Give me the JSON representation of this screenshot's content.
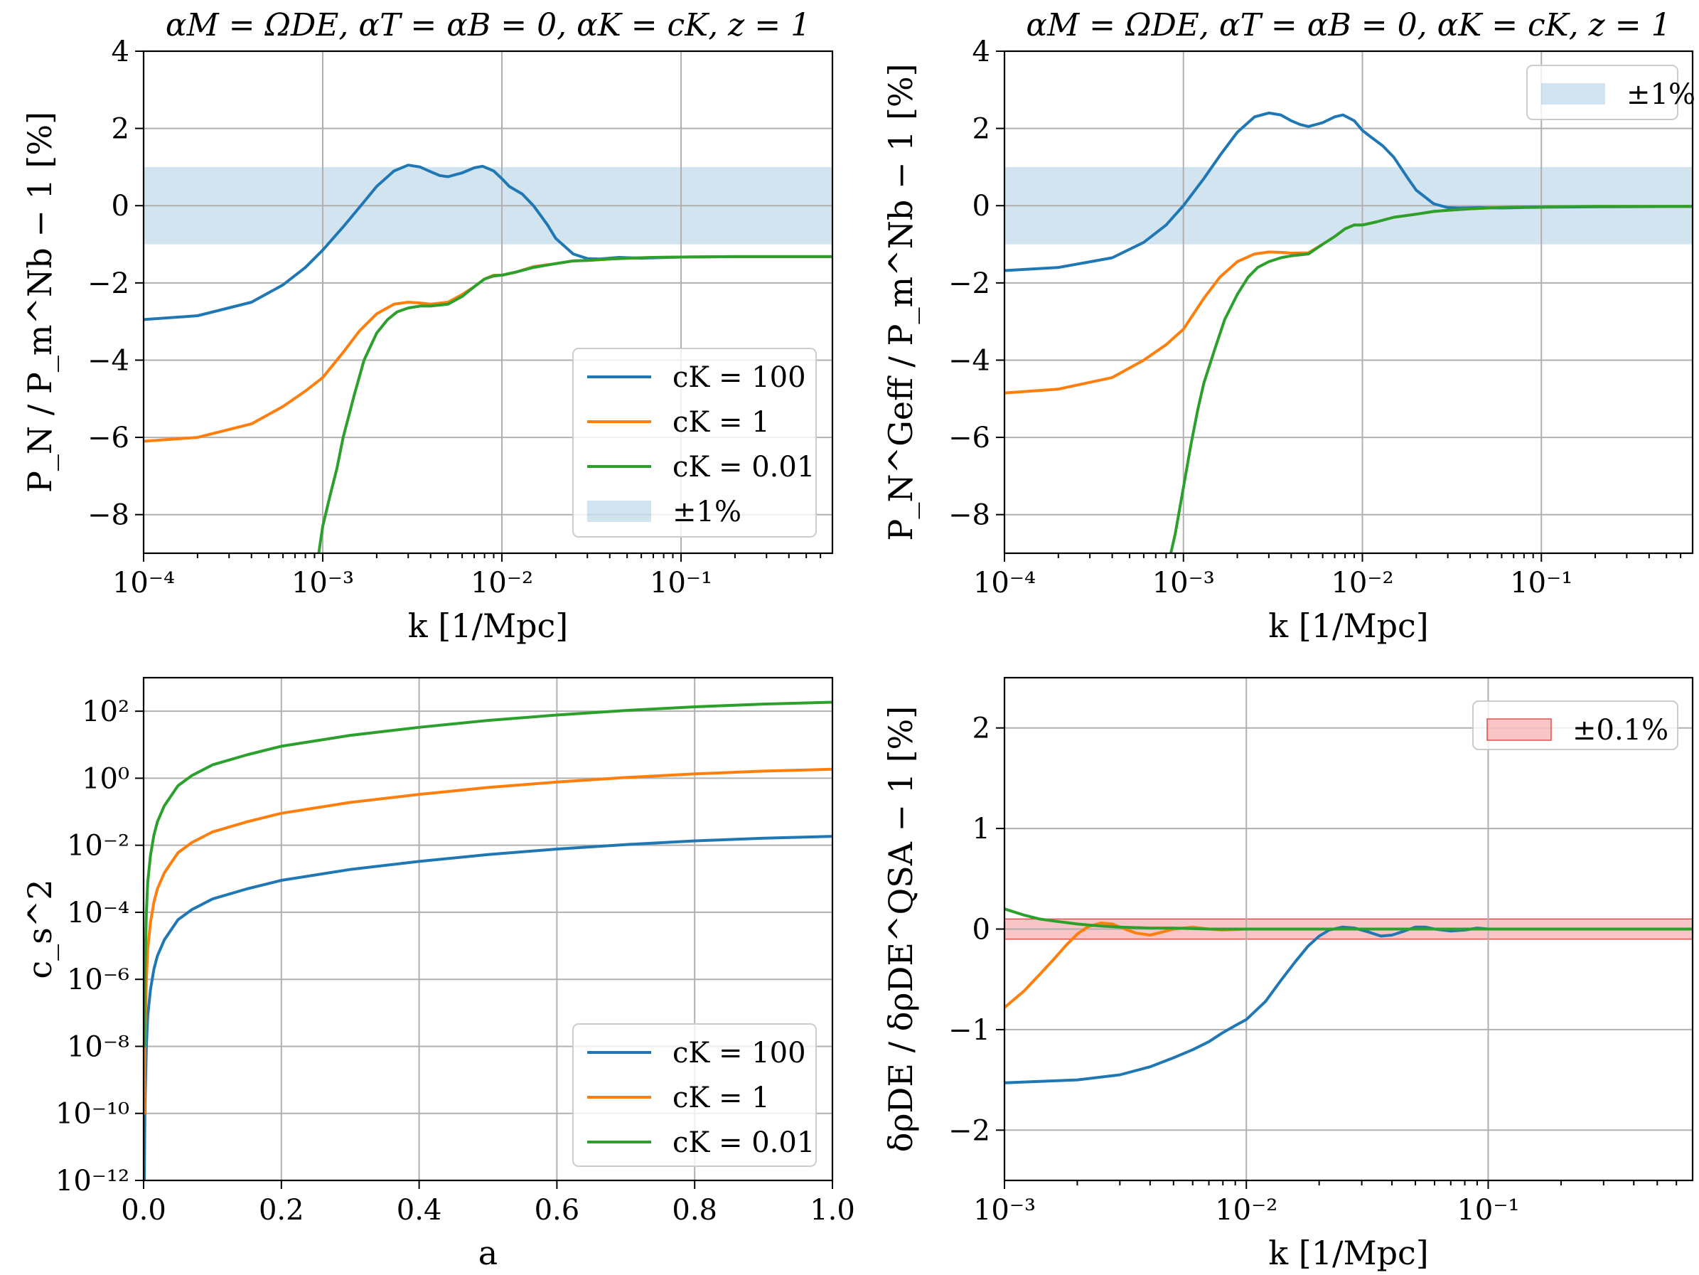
{
  "colors": {
    "c100": "#1f77b4",
    "c1": "#ff7f0e",
    "c001": "#2ca02c",
    "band_blue": "#1f77b4",
    "band_red": "#f08080"
  },
  "chart_data": [
    {
      "id": "top_left",
      "type": "line",
      "title": "αM = ΩDE, αT = αB = 0, αK = cK, z = 1",
      "xlabel": "k [1/Mpc]",
      "ylabel": "P_N / P_m^Nb − 1 [%]",
      "xscale": "log",
      "xlim": [
        0.0001,
        0.7
      ],
      "ylim": [
        -9,
        4
      ],
      "xticks": [
        0.0001,
        0.001,
        0.01,
        0.1
      ],
      "xtick_labels": [
        "10⁻⁴",
        "10⁻³",
        "10⁻²",
        "10⁻¹"
      ],
      "yticks": [
        -8,
        -6,
        -4,
        -2,
        0,
        2,
        4
      ],
      "ytick_labels": [
        "−8",
        "−6",
        "−4",
        "−2",
        "0",
        "2",
        "4"
      ],
      "band": {
        "low": -1,
        "high": 1,
        "label": "±1%",
        "color": "band_blue"
      },
      "legend": {
        "position": "lower-right",
        "entries": [
          "cK = 100",
          "cK = 1",
          "cK = 0.01",
          "±1%"
        ]
      },
      "series": [
        {
          "name": "cK = 100",
          "color": "c100",
          "x": [
            0.0001,
            0.0002,
            0.0004,
            0.0006,
            0.0008,
            0.001,
            0.0013,
            0.0016,
            0.002,
            0.0025,
            0.003,
            0.0035,
            0.004,
            0.0045,
            0.005,
            0.006,
            0.007,
            0.0078,
            0.009,
            0.01,
            0.011,
            0.013,
            0.015,
            0.018,
            0.02,
            0.025,
            0.03,
            0.035,
            0.045,
            0.06,
            0.1,
            0.2,
            0.7
          ],
          "y": [
            -2.95,
            -2.85,
            -2.5,
            -2.05,
            -1.6,
            -1.15,
            -0.55,
            -0.05,
            0.5,
            0.9,
            1.05,
            1.0,
            0.88,
            0.78,
            0.75,
            0.85,
            0.98,
            1.02,
            0.9,
            0.7,
            0.5,
            0.3,
            0.0,
            -0.5,
            -0.85,
            -1.25,
            -1.37,
            -1.38,
            -1.34,
            -1.36,
            -1.33,
            -1.32,
            -1.32
          ]
        },
        {
          "name": "cK = 1",
          "color": "c1",
          "x": [
            0.0001,
            0.0002,
            0.0004,
            0.0006,
            0.0008,
            0.001,
            0.0013,
            0.0016,
            0.002,
            0.0025,
            0.003,
            0.0035,
            0.004,
            0.005,
            0.006,
            0.007,
            0.008,
            0.009,
            0.01,
            0.012,
            0.015,
            0.02,
            0.025,
            0.03,
            0.04,
            0.05,
            0.07,
            0.1,
            0.2,
            0.7
          ],
          "y": [
            -6.1,
            -6.0,
            -5.65,
            -5.2,
            -4.8,
            -4.45,
            -3.8,
            -3.25,
            -2.8,
            -2.55,
            -2.5,
            -2.52,
            -2.55,
            -2.5,
            -2.3,
            -2.1,
            -1.9,
            -1.8,
            -1.8,
            -1.72,
            -1.58,
            -1.5,
            -1.43,
            -1.42,
            -1.38,
            -1.36,
            -1.34,
            -1.33,
            -1.32,
            -1.32
          ]
        },
        {
          "name": "cK = 0.01",
          "color": "c001",
          "x": [
            0.00095,
            0.001,
            0.0011,
            0.0012,
            0.0013,
            0.0015,
            0.0017,
            0.002,
            0.0023,
            0.0026,
            0.003,
            0.0035,
            0.004,
            0.005,
            0.006,
            0.007,
            0.008,
            0.009,
            0.01,
            0.012,
            0.015,
            0.02,
            0.025,
            0.03,
            0.04,
            0.05,
            0.07,
            0.1,
            0.2,
            0.7
          ],
          "y": [
            -9.0,
            -8.3,
            -7.5,
            -6.8,
            -6.0,
            -4.9,
            -4.0,
            -3.3,
            -2.95,
            -2.75,
            -2.65,
            -2.6,
            -2.6,
            -2.55,
            -2.35,
            -2.1,
            -1.9,
            -1.82,
            -1.8,
            -1.72,
            -1.6,
            -1.5,
            -1.43,
            -1.42,
            -1.38,
            -1.36,
            -1.34,
            -1.33,
            -1.32,
            -1.32
          ]
        }
      ]
    },
    {
      "id": "top_right",
      "type": "line",
      "title": "αM = ΩDE, αT = αB = 0, αK = cK, z = 1",
      "xlabel": "k [1/Mpc]",
      "ylabel": "P_N^Geff / P_m^Nb − 1 [%]",
      "xscale": "log",
      "xlim": [
        0.0001,
        0.7
      ],
      "ylim": [
        -9,
        4
      ],
      "xticks": [
        0.0001,
        0.001,
        0.01,
        0.1
      ],
      "xtick_labels": [
        "10⁻⁴",
        "10⁻³",
        "10⁻²",
        "10⁻¹"
      ],
      "yticks": [
        -8,
        -6,
        -4,
        -2,
        0,
        2,
        4
      ],
      "ytick_labels": [
        "−8",
        "−6",
        "−4",
        "−2",
        "0",
        "2",
        "4"
      ],
      "band": {
        "low": -1,
        "high": 1,
        "label": "±1%",
        "color": "band_blue"
      },
      "legend": {
        "position": "upper-right",
        "entries": [
          "±1%"
        ]
      },
      "series": [
        {
          "name": "cK = 100",
          "color": "c100",
          "x": [
            0.0001,
            0.0002,
            0.0004,
            0.0006,
            0.0008,
            0.001,
            0.0013,
            0.0016,
            0.002,
            0.0025,
            0.003,
            0.0035,
            0.004,
            0.0045,
            0.005,
            0.006,
            0.007,
            0.0078,
            0.009,
            0.01,
            0.011,
            0.013,
            0.015,
            0.018,
            0.02,
            0.025,
            0.03,
            0.035,
            0.045,
            0.06,
            0.1,
            0.2,
            0.7
          ],
          "y": [
            -1.68,
            -1.6,
            -1.35,
            -0.95,
            -0.5,
            0.0,
            0.7,
            1.3,
            1.9,
            2.3,
            2.4,
            2.35,
            2.2,
            2.1,
            2.05,
            2.15,
            2.3,
            2.35,
            2.2,
            1.95,
            1.8,
            1.55,
            1.25,
            0.7,
            0.4,
            0.05,
            -0.05,
            -0.06,
            -0.05,
            -0.06,
            -0.04,
            -0.03,
            -0.02
          ]
        },
        {
          "name": "cK = 1",
          "color": "c1",
          "x": [
            0.0001,
            0.0002,
            0.0004,
            0.0006,
            0.0008,
            0.001,
            0.0013,
            0.0016,
            0.002,
            0.0025,
            0.003,
            0.0035,
            0.004,
            0.005,
            0.006,
            0.007,
            0.008,
            0.009,
            0.01,
            0.012,
            0.015,
            0.02,
            0.025,
            0.03,
            0.04,
            0.05,
            0.07,
            0.1,
            0.2,
            0.7
          ],
          "y": [
            -4.85,
            -4.75,
            -4.45,
            -4.0,
            -3.6,
            -3.2,
            -2.4,
            -1.85,
            -1.45,
            -1.25,
            -1.2,
            -1.21,
            -1.23,
            -1.22,
            -1.0,
            -0.8,
            -0.6,
            -0.5,
            -0.5,
            -0.42,
            -0.3,
            -0.22,
            -0.15,
            -0.12,
            -0.08,
            -0.06,
            -0.04,
            -0.03,
            -0.02,
            -0.02
          ]
        },
        {
          "name": "cK = 0.01",
          "color": "c001",
          "x": [
            0.00085,
            0.0009,
            0.001,
            0.0011,
            0.0012,
            0.0013,
            0.0015,
            0.0017,
            0.002,
            0.0023,
            0.0026,
            0.003,
            0.0035,
            0.004,
            0.005,
            0.006,
            0.007,
            0.008,
            0.009,
            0.01,
            0.012,
            0.015,
            0.02,
            0.025,
            0.03,
            0.04,
            0.05,
            0.07,
            0.1,
            0.2,
            0.7
          ],
          "y": [
            -9.0,
            -8.5,
            -7.3,
            -6.2,
            -5.3,
            -4.6,
            -3.7,
            -2.95,
            -2.3,
            -1.85,
            -1.6,
            -1.45,
            -1.35,
            -1.3,
            -1.25,
            -1.0,
            -0.8,
            -0.6,
            -0.5,
            -0.5,
            -0.42,
            -0.3,
            -0.22,
            -0.15,
            -0.12,
            -0.08,
            -0.06,
            -0.04,
            -0.03,
            -0.02,
            -0.02
          ]
        }
      ]
    },
    {
      "id": "bottom_left",
      "type": "line",
      "title": "",
      "xlabel": "a",
      "ylabel": "c_s^2",
      "xscale": "linear",
      "yscale": "log",
      "xlim": [
        0.0,
        1.0
      ],
      "ylim": [
        1e-12,
        1000
      ],
      "xticks": [
        0.0,
        0.2,
        0.4,
        0.6,
        0.8,
        1.0
      ],
      "xtick_labels": [
        "0.0",
        "0.2",
        "0.4",
        "0.6",
        "0.8",
        "1.0"
      ],
      "yticks": [
        1e-12,
        1e-10,
        1e-08,
        1e-06,
        0.0001,
        0.01,
        1,
        100
      ],
      "ytick_labels": [
        "10⁻¹²",
        "10⁻¹⁰",
        "10⁻⁸",
        "10⁻⁶",
        "10⁻⁴",
        "10⁻²",
        "10⁰",
        "10²"
      ],
      "legend": {
        "position": "lower-right",
        "entries": [
          "cK = 100",
          "cK = 1",
          "cK = 0.01"
        ]
      },
      "series": [
        {
          "name": "cK = 100",
          "color": "c100",
          "x": [
            0.001,
            0.002,
            0.004,
            0.006,
            0.01,
            0.015,
            0.02,
            0.03,
            0.05,
            0.07,
            0.1,
            0.15,
            0.2,
            0.3,
            0.4,
            0.5,
            0.6,
            0.7,
            0.8,
            0.9,
            1.0
          ],
          "y": [
            1e-12,
            1.5e-10,
            1e-08,
            8e-08,
            5e-07,
            2e-06,
            5e-06,
            1.5e-05,
            6e-05,
            0.00012,
            0.00025,
            0.0005,
            0.0009,
            0.0019,
            0.0033,
            0.0053,
            0.0077,
            0.0105,
            0.0135,
            0.0163,
            0.0185
          ]
        },
        {
          "name": "cK = 1",
          "color": "c1",
          "x": [
            0.001,
            0.002,
            0.004,
            0.006,
            0.01,
            0.015,
            0.02,
            0.03,
            0.05,
            0.07,
            0.1,
            0.15,
            0.2,
            0.3,
            0.4,
            0.5,
            0.6,
            0.7,
            0.8,
            0.9,
            1.0
          ],
          "y": [
            1e-10,
            1.5e-08,
            1e-06,
            8e-06,
            5e-05,
            0.0002,
            0.0005,
            0.0015,
            0.006,
            0.012,
            0.025,
            0.05,
            0.09,
            0.19,
            0.33,
            0.53,
            0.77,
            1.05,
            1.35,
            1.63,
            1.85
          ]
        },
        {
          "name": "cK = 0.01",
          "color": "c001",
          "x": [
            0.001,
            0.002,
            0.004,
            0.006,
            0.01,
            0.015,
            0.02,
            0.03,
            0.05,
            0.07,
            0.1,
            0.15,
            0.2,
            0.3,
            0.4,
            0.5,
            0.6,
            0.7,
            0.8,
            0.9,
            1.0
          ],
          "y": [
            1e-08,
            1.5e-06,
            0.0001,
            0.0008,
            0.005,
            0.02,
            0.05,
            0.15,
            0.6,
            1.2,
            2.5,
            5,
            9,
            19,
            33,
            53,
            77,
            105,
            135,
            163,
            185
          ]
        }
      ]
    },
    {
      "id": "bottom_right",
      "type": "line",
      "title": "",
      "xlabel": "k [1/Mpc]",
      "ylabel": "δρDE / δρDE^QSA − 1 [%]",
      "xscale": "log",
      "xlim": [
        0.001,
        0.7
      ],
      "ylim": [
        -2.5,
        2.5
      ],
      "xticks": [
        0.001,
        0.01,
        0.1
      ],
      "xtick_labels": [
        "10⁻³",
        "10⁻²",
        "10⁻¹"
      ],
      "yticks": [
        -2,
        -1,
        0,
        1,
        2
      ],
      "ytick_labels": [
        "−2",
        "−1",
        "0",
        "1",
        "2"
      ],
      "band": {
        "low": -0.1,
        "high": 0.1,
        "label": "±0.1%",
        "color": "band_red"
      },
      "legend": {
        "position": "upper-right",
        "entries": [
          "±0.1%"
        ]
      },
      "series": [
        {
          "name": "cK = 100",
          "color": "c100",
          "x": [
            0.001,
            0.002,
            0.003,
            0.004,
            0.005,
            0.006,
            0.007,
            0.008,
            0.009,
            0.01,
            0.012,
            0.014,
            0.016,
            0.018,
            0.02,
            0.022,
            0.025,
            0.028,
            0.032,
            0.036,
            0.04,
            0.045,
            0.05,
            0.055,
            0.06,
            0.07,
            0.08,
            0.09,
            0.1,
            0.15,
            0.2,
            0.4,
            0.7
          ],
          "y": [
            -1.53,
            -1.5,
            -1.45,
            -1.37,
            -1.28,
            -1.2,
            -1.12,
            -1.03,
            -0.96,
            -0.9,
            -0.72,
            -0.5,
            -0.32,
            -0.17,
            -0.07,
            -0.01,
            0.02,
            0.01,
            -0.03,
            -0.07,
            -0.06,
            -0.02,
            0.02,
            0.02,
            0.0,
            -0.02,
            -0.01,
            0.01,
            0.0,
            0.0,
            0.0,
            0.0,
            0.0
          ]
        },
        {
          "name": "cK = 1",
          "color": "c1",
          "x": [
            0.001,
            0.0012,
            0.0014,
            0.0016,
            0.0018,
            0.002,
            0.0022,
            0.0025,
            0.0028,
            0.003,
            0.0035,
            0.004,
            0.0045,
            0.005,
            0.006,
            0.007,
            0.008,
            0.01,
            0.015,
            0.02,
            0.05,
            0.1,
            0.7
          ],
          "y": [
            -0.78,
            -0.62,
            -0.45,
            -0.3,
            -0.16,
            -0.05,
            0.02,
            0.06,
            0.05,
            0.02,
            -0.04,
            -0.06,
            -0.03,
            0.0,
            0.02,
            0.0,
            -0.01,
            0.0,
            0.0,
            0.0,
            0.0,
            0.0,
            0.0
          ]
        },
        {
          "name": "cK = 0.01",
          "color": "c001",
          "x": [
            0.001,
            0.0012,
            0.0014,
            0.0016,
            0.002,
            0.0025,
            0.003,
            0.004,
            0.005,
            0.007,
            0.01,
            0.02,
            0.05,
            0.1,
            0.7
          ],
          "y": [
            0.2,
            0.14,
            0.1,
            0.08,
            0.05,
            0.03,
            0.02,
            0.01,
            0.01,
            0.0,
            0.0,
            0.0,
            0.0,
            0.0,
            0.0
          ]
        }
      ]
    }
  ]
}
